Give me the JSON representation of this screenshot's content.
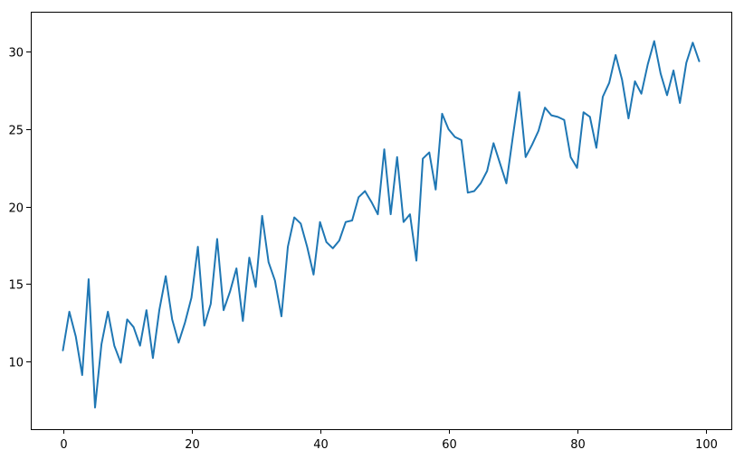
{
  "chart_data": {
    "type": "line",
    "title": "",
    "xlabel": "",
    "ylabel": "",
    "xlim": [
      -5,
      104
    ],
    "ylim": [
      5.6,
      32.6
    ],
    "xticks": [
      0,
      20,
      40,
      60,
      80,
      100
    ],
    "yticks": [
      10,
      15,
      20,
      25,
      30
    ],
    "xtick_labels": [
      "0",
      "20",
      "40",
      "60",
      "80",
      "100"
    ],
    "ytick_labels": [
      "10",
      "15",
      "20",
      "25",
      "30"
    ],
    "grid": false,
    "legend": "none",
    "series": [
      {
        "color": "#1f77b4",
        "x": [
          0,
          1,
          2,
          3,
          4,
          5,
          6,
          7,
          8,
          9,
          10,
          11,
          12,
          13,
          14,
          15,
          16,
          17,
          18,
          19,
          20,
          21,
          22,
          23,
          24,
          25,
          26,
          27,
          28,
          29,
          30,
          31,
          32,
          33,
          34,
          35,
          36,
          37,
          38,
          39,
          40,
          41,
          42,
          43,
          44,
          45,
          46,
          47,
          48,
          49,
          50,
          51,
          52,
          53,
          54,
          55,
          56,
          57,
          58,
          59,
          60,
          61,
          62,
          63,
          64,
          65,
          66,
          67,
          68,
          69,
          70,
          71,
          72,
          73,
          74,
          75,
          76,
          77,
          78,
          79,
          80,
          81,
          82,
          83,
          84,
          85,
          86,
          87,
          88,
          89,
          90,
          91,
          92,
          93,
          94,
          95,
          96,
          97,
          98,
          99
        ],
        "values": [
          10.7,
          13.2,
          11.6,
          9.1,
          15.3,
          7.0,
          11.1,
          13.2,
          11.0,
          9.9,
          12.7,
          12.2,
          11.0,
          13.3,
          10.2,
          13.3,
          15.5,
          12.7,
          11.2,
          12.5,
          14.1,
          17.4,
          12.3,
          13.7,
          17.9,
          13.3,
          14.5,
          16.0,
          12.6,
          16.7,
          14.8,
          19.4,
          16.4,
          15.2,
          12.9,
          17.4,
          19.3,
          18.9,
          17.4,
          15.6,
          19.0,
          17.7,
          17.3,
          17.8,
          19.0,
          19.1,
          20.6,
          21.0,
          20.3,
          19.5,
          23.7,
          19.5,
          23.2,
          19.0,
          19.5,
          16.5,
          23.1,
          23.5,
          21.1,
          26.0,
          25.0,
          24.5,
          24.3,
          20.9,
          21.0,
          21.5,
          22.3,
          24.1,
          22.8,
          21.5,
          24.5,
          27.4,
          23.2,
          24.0,
          24.9,
          26.4,
          25.9,
          25.8,
          25.6,
          23.2,
          22.5,
          26.1,
          25.8,
          23.8,
          27.1,
          28.0,
          29.8,
          28.2,
          25.7,
          28.1,
          27.3,
          29.2,
          30.7,
          28.6,
          27.2,
          28.8,
          26.7,
          29.3,
          30.6,
          29.4
        ]
      }
    ]
  }
}
